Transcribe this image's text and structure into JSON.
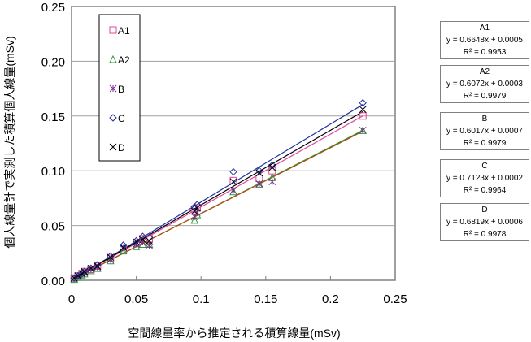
{
  "chart_data": {
    "type": "scatter",
    "xlabel": "空間線量率から推定される積算線量(mSv)",
    "ylabel": "個人線量計で実測した積算個人線量(mSv)",
    "xlim": [
      0,
      0.25
    ],
    "ylim": [
      0,
      0.25
    ],
    "xticks": [
      "0",
      "0.05",
      "0.1",
      "0.15",
      "0.2",
      "0.25"
    ],
    "yticks": [
      "0.00",
      "0.05",
      "0.10",
      "0.15",
      "0.20",
      "0.25"
    ],
    "grid": "horizontal",
    "legend_placement": "top-left",
    "x": [
      0.002,
      0.005,
      0.008,
      0.01,
      0.015,
      0.02,
      0.03,
      0.04,
      0.05,
      0.055,
      0.06,
      0.095,
      0.097,
      0.125,
      0.145,
      0.155,
      0.225
    ],
    "series": [
      {
        "name": "A1",
        "marker": "square",
        "color": "#e0479a",
        "values": [
          0.002,
          0.004,
          0.006,
          0.008,
          0.01,
          0.013,
          0.02,
          0.028,
          0.034,
          0.038,
          0.038,
          0.065,
          0.066,
          0.091,
          0.093,
          0.1,
          0.15
        ],
        "fit": {
          "slope": 0.6648,
          "intercept": 0.0005,
          "label": "y = 0.6648x + 0.0005",
          "r2": "R² = 0.9953"
        }
      },
      {
        "name": "A2",
        "marker": "triangle",
        "color": "#2a9a3a",
        "values": [
          0.001,
          0.003,
          0.005,
          0.006,
          0.009,
          0.011,
          0.018,
          0.027,
          0.031,
          0.033,
          0.033,
          0.055,
          0.06,
          0.081,
          0.088,
          0.094,
          0.137
        ],
        "fit": {
          "slope": 0.6072,
          "intercept": 0.0003,
          "label": "y = 0.6072x + 0.0003",
          "r2": "R² = 0.9979"
        }
      },
      {
        "name": "B",
        "marker": "asterisk",
        "color": "#7b2a8a",
        "values": [
          0.002,
          0.004,
          0.006,
          0.007,
          0.01,
          0.012,
          0.019,
          0.03,
          0.033,
          0.035,
          0.032,
          0.058,
          0.062,
          0.082,
          0.088,
          0.09,
          0.137
        ],
        "fit": {
          "slope": 0.6017,
          "intercept": 0.0007,
          "label": "y = 0.6017x + 0.0007",
          "r2": "R² = 0.9979"
        }
      },
      {
        "name": "C",
        "marker": "diamond",
        "color": "#2030a0",
        "values": [
          0.002,
          0.004,
          0.006,
          0.008,
          0.011,
          0.014,
          0.022,
          0.032,
          0.036,
          0.04,
          0.039,
          0.067,
          0.069,
          0.099,
          0.1,
          0.105,
          0.162
        ],
        "fit": {
          "slope": 0.7123,
          "intercept": 0.0002,
          "label": "y = 0.7123x + 0.0002",
          "r2": "R² = 0.9964"
        }
      },
      {
        "name": "D",
        "marker": "x",
        "color": "#000000",
        "values": [
          0.002,
          0.004,
          0.006,
          0.008,
          0.011,
          0.013,
          0.021,
          0.03,
          0.035,
          0.037,
          0.036,
          0.063,
          0.066,
          0.09,
          0.098,
          0.103,
          0.156
        ],
        "fit": {
          "slope": 0.6819,
          "intercept": 0.0006,
          "label": "y = 0.6819x + 0.0006",
          "r2": "R² = 0.9978"
        }
      }
    ]
  },
  "fit_line_colors": {
    "A1": "#e0479a",
    "A2": "#2a9a3a",
    "B": "#b04a10",
    "C": "#2030a0",
    "D": "#000000"
  }
}
